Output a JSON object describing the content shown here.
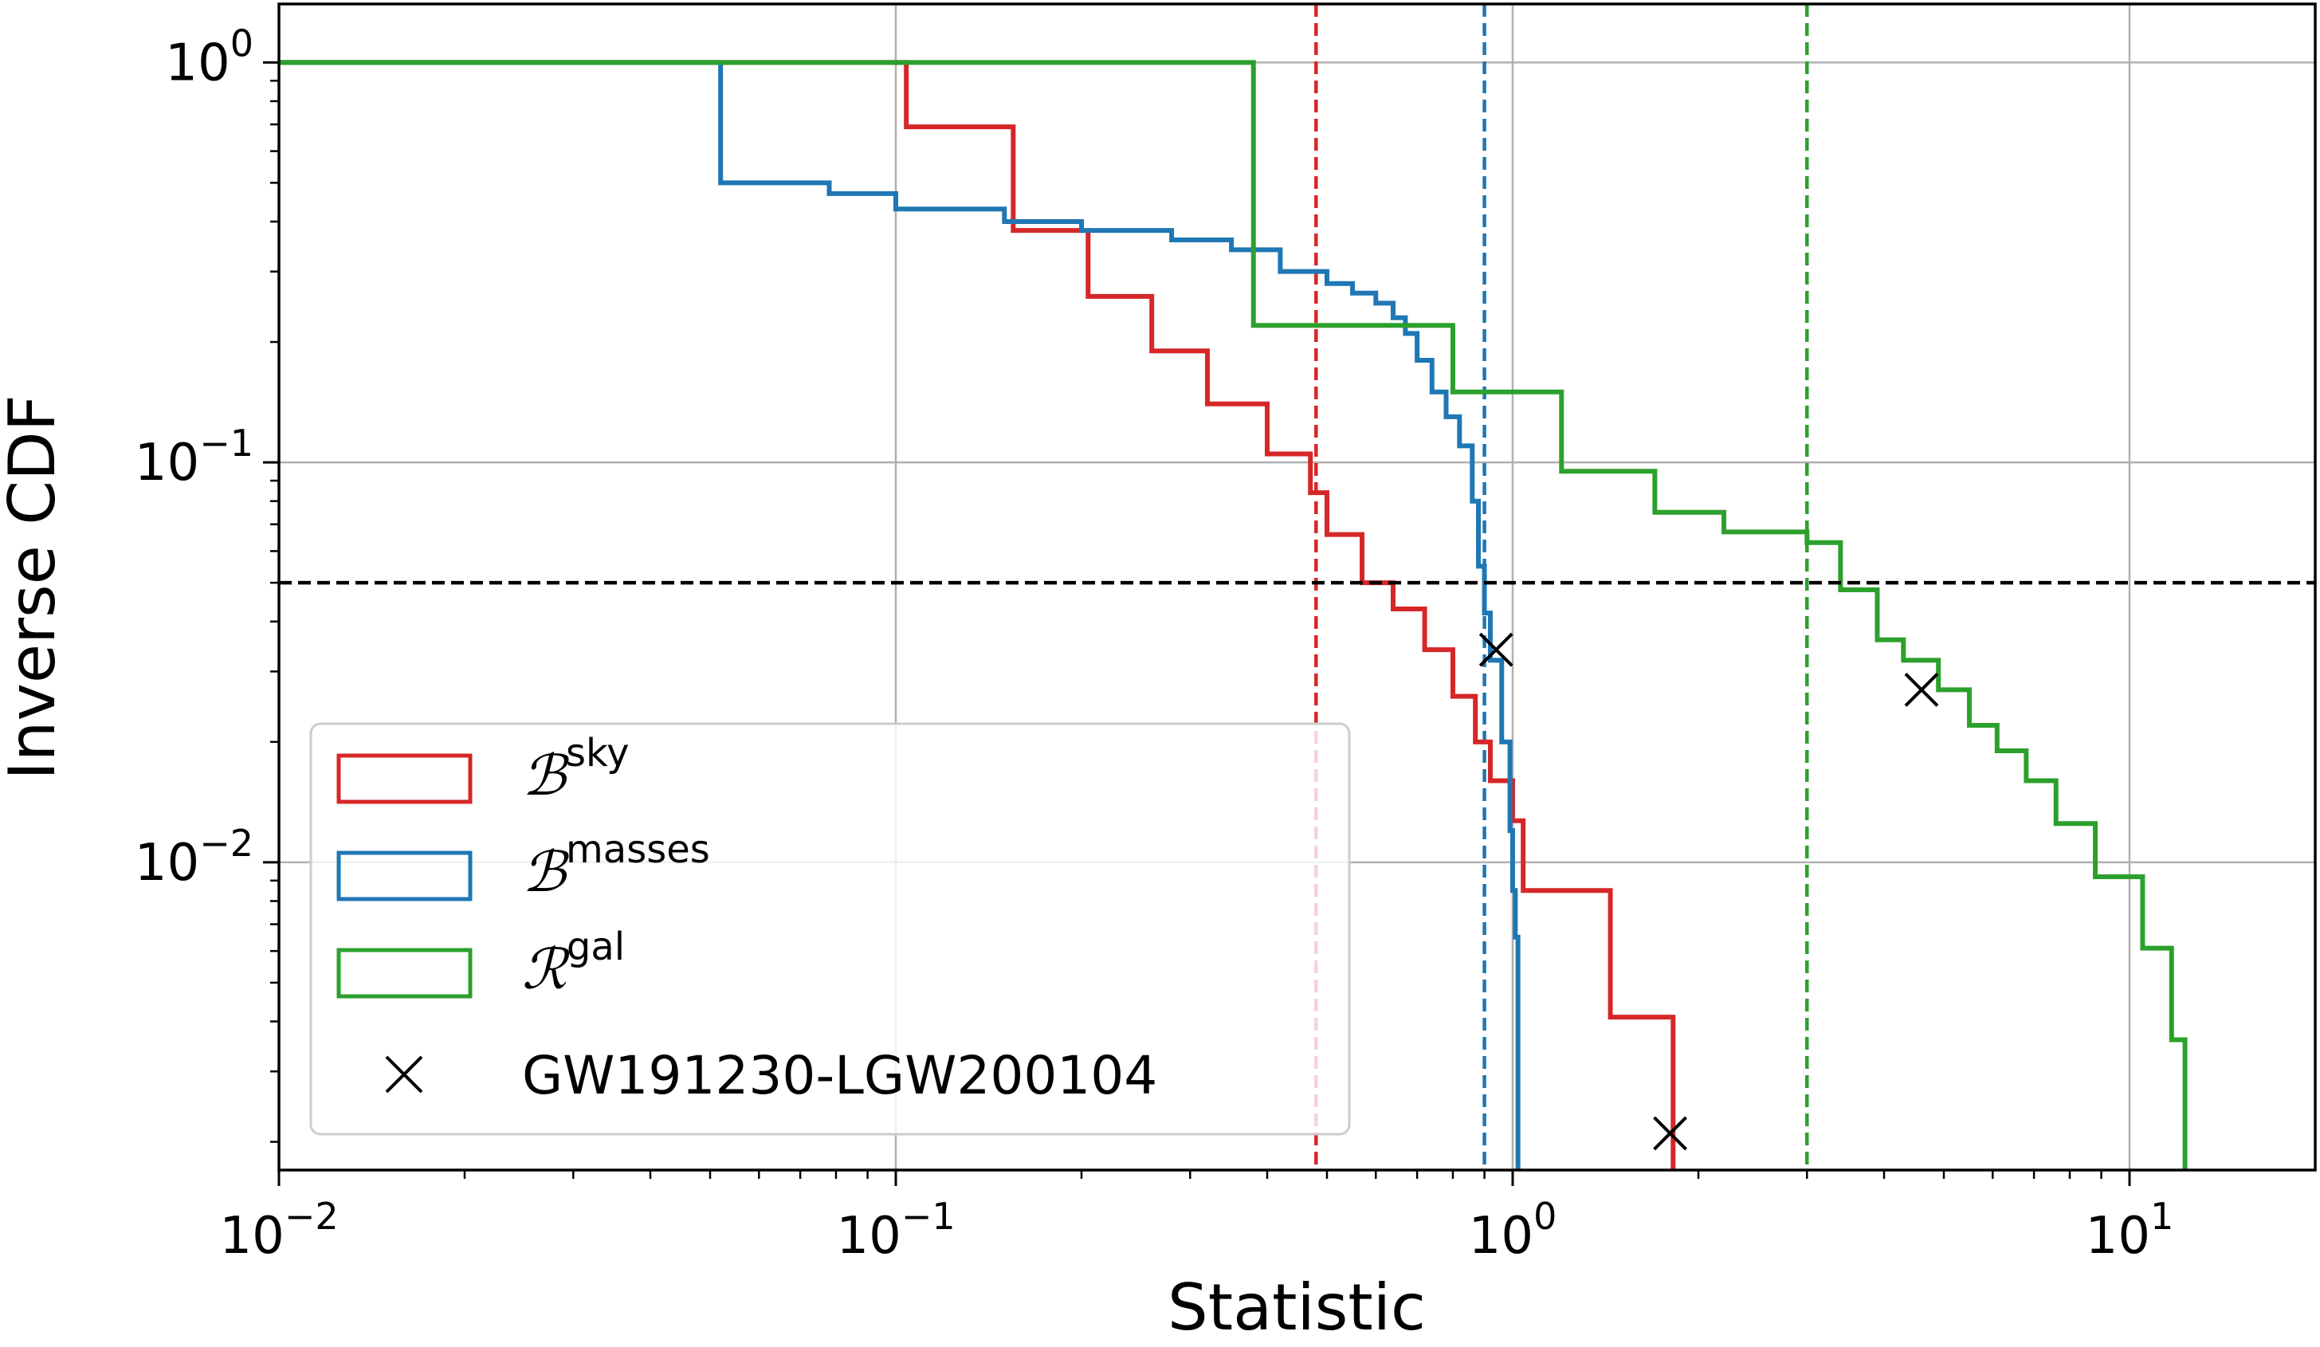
{
  "chart_data": {
    "type": "line",
    "subtype": "step",
    "xscale": "log",
    "yscale": "log",
    "xlim": [
      0.01,
      20
    ],
    "ylim": [
      0.0017,
      1.4
    ],
    "xlabel": "Statistic",
    "ylabel": "Inverse CDF",
    "grid": true,
    "legend_position": "lower-left",
    "x_ticks": [
      {
        "base": "10",
        "exp": "−2",
        "value": 0.01
      },
      {
        "base": "10",
        "exp": "−1",
        "value": 0.1
      },
      {
        "base": "10",
        "exp": "0",
        "value": 1
      },
      {
        "base": "10",
        "exp": "1",
        "value": 10
      }
    ],
    "y_ticks": [
      {
        "base": "10",
        "exp": "0",
        "value": 1
      },
      {
        "base": "10",
        "exp": "−1",
        "value": 0.1
      },
      {
        "base": "10",
        "exp": "−2",
        "value": 0.01
      }
    ],
    "threshold_y": 0.05,
    "threshold_color": "#000000",
    "series": [
      {
        "name": "sky",
        "legend_symbol": "ℬ",
        "legend_sup": "sky",
        "color": "#d62728",
        "vline_x": 0.48,
        "marker": {
          "x": 1.8,
          "y": 0.0021
        },
        "x": [
          0.052,
          0.104,
          0.155,
          0.205,
          0.26,
          0.32,
          0.4,
          0.47,
          0.5,
          0.57,
          0.64,
          0.72,
          0.8,
          0.87,
          0.92,
          1.0,
          1.04,
          1.44,
          1.82
        ],
        "y": [
          1.0,
          0.69,
          0.38,
          0.26,
          0.19,
          0.14,
          0.105,
          0.084,
          0.066,
          0.05,
          0.043,
          0.034,
          0.026,
          0.02,
          0.016,
          0.0127,
          0.0085,
          0.0041,
          0.0021
        ]
      },
      {
        "name": "masses",
        "legend_symbol": "ℬ",
        "legend_sup": "masses",
        "color": "#1f77b4",
        "vline_x": 0.9,
        "marker": {
          "x": 0.94,
          "y": 0.034
        },
        "x": [
          0.026,
          0.052,
          0.078,
          0.1,
          0.15,
          0.2,
          0.28,
          0.35,
          0.42,
          0.5,
          0.55,
          0.6,
          0.64,
          0.67,
          0.7,
          0.74,
          0.78,
          0.82,
          0.86,
          0.88,
          0.9,
          0.92,
          0.96,
          0.99,
          1.0,
          1.01,
          1.02
        ],
        "y": [
          1.0,
          0.5,
          0.47,
          0.43,
          0.4,
          0.38,
          0.36,
          0.34,
          0.3,
          0.28,
          0.265,
          0.25,
          0.23,
          0.21,
          0.18,
          0.15,
          0.13,
          0.11,
          0.08,
          0.055,
          0.042,
          0.032,
          0.02,
          0.012,
          0.0085,
          0.0065,
          0.0045
        ]
      },
      {
        "name": "gal",
        "legend_symbol": "ℛ",
        "legend_sup": "gal",
        "color": "#2ca02c",
        "vline_x": 3.0,
        "marker": {
          "x": 4.6,
          "y": 0.027
        },
        "x": [
          0.01,
          0.38,
          0.8,
          1.2,
          1.7,
          2.2,
          3.0,
          3.4,
          3.9,
          4.3,
          4.9,
          5.5,
          6.1,
          6.8,
          7.6,
          8.8,
          10.5,
          11.7,
          12.3
        ],
        "y": [
          1.0,
          0.22,
          0.15,
          0.095,
          0.075,
          0.067,
          0.063,
          0.048,
          0.036,
          0.032,
          0.027,
          0.022,
          0.019,
          0.016,
          0.0125,
          0.0092,
          0.0061,
          0.0036,
          0.0021
        ]
      }
    ],
    "marker_legend_label": "GW191230-LGW200104",
    "marker_symbol": "×"
  }
}
